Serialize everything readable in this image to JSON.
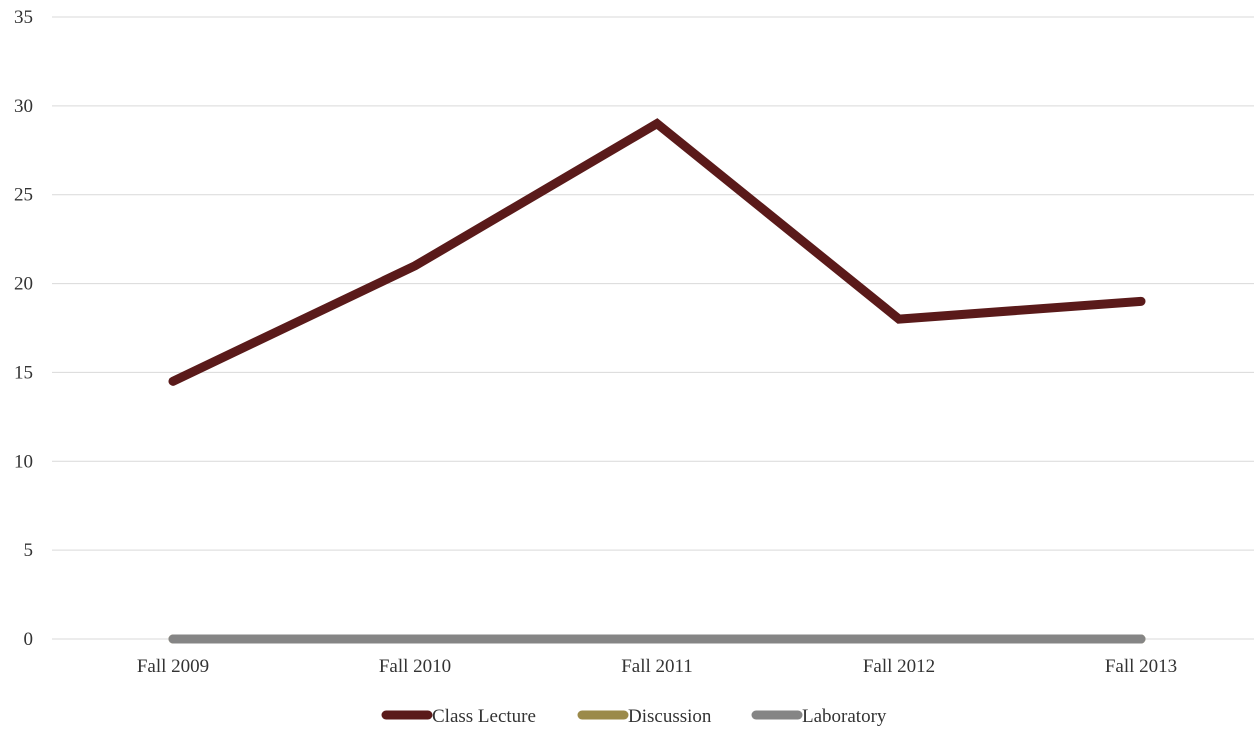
{
  "chart_data": {
    "type": "line",
    "categories": [
      "Fall 2009",
      "Fall 2010",
      "Fall 2011",
      "Fall 2012",
      "Fall 2013"
    ],
    "series": [
      {
        "name": "Class Lecture",
        "values": [
          14.5,
          21,
          29,
          18,
          19
        ],
        "color": "#5a1a1a"
      },
      {
        "name": "Discussion",
        "values": [
          0,
          0,
          0,
          0,
          0
        ],
        "color": "#9b8a4a"
      },
      {
        "name": "Laboratory",
        "values": [
          0,
          0,
          0,
          0,
          0
        ],
        "color": "#858585"
      }
    ],
    "ylim": [
      0,
      35
    ],
    "yticks": [
      "0",
      "5",
      "10",
      "15",
      "20",
      "25",
      "30",
      "35"
    ],
    "grid": true,
    "legend_position": "bottom"
  }
}
